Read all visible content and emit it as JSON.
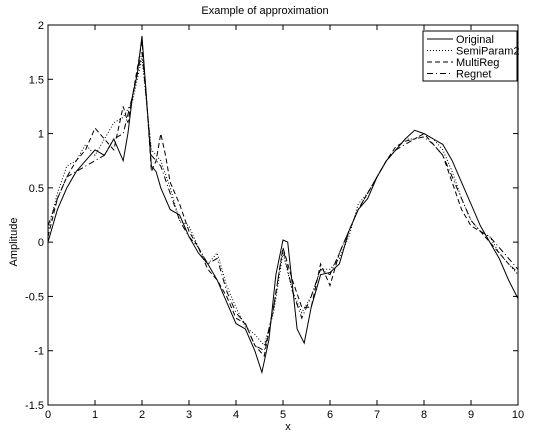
{
  "chart_data": {
    "type": "line",
    "title": "Example of approximation",
    "xlabel": "x",
    "ylabel": "Amplitude",
    "xlim": [
      0,
      10
    ],
    "ylim": [
      -1.5,
      2
    ],
    "xticks": [
      0,
      1,
      2,
      3,
      4,
      5,
      6,
      7,
      8,
      9,
      10
    ],
    "yticks": [
      -1.5,
      -1,
      -0.5,
      0,
      0.5,
      1,
      1.5,
      2
    ],
    "ytick_labels": [
      "-1.5",
      "-1",
      "-0.5",
      "0",
      "0.5",
      "1",
      "1.5",
      "2"
    ],
    "grid": false,
    "legend_position": "top-right",
    "series": [
      {
        "name": "Original",
        "style": "solid",
        "x": [
          0,
          0.2,
          0.4,
          0.6,
          0.8,
          1.0,
          1.2,
          1.4,
          1.5,
          1.6,
          1.7,
          1.8,
          1.9,
          2.0,
          2.1,
          2.2,
          2.3,
          2.4,
          2.6,
          2.8,
          3.0,
          3.2,
          3.4,
          3.6,
          3.8,
          4.0,
          4.2,
          4.4,
          4.55,
          4.7,
          4.85,
          5.0,
          5.1,
          5.2,
          5.3,
          5.45,
          5.6,
          5.8,
          6.0,
          6.2,
          6.4,
          6.6,
          6.8,
          7.0,
          7.2,
          7.4,
          7.6,
          7.8,
          8.0,
          8.2,
          8.4,
          8.6,
          8.8,
          9.0,
          9.2,
          9.4,
          9.6,
          9.8,
          10.0
        ],
        "y": [
          0.0,
          0.3,
          0.5,
          0.65,
          0.75,
          0.85,
          0.8,
          0.95,
          0.85,
          0.75,
          1.0,
          1.35,
          1.55,
          1.9,
          1.3,
          0.7,
          0.65,
          0.5,
          0.3,
          0.25,
          0.05,
          -0.1,
          -0.2,
          -0.35,
          -0.55,
          -0.75,
          -0.8,
          -1.0,
          -1.2,
          -0.9,
          -0.3,
          0.02,
          0.0,
          -0.4,
          -0.8,
          -0.93,
          -0.6,
          -0.3,
          -0.28,
          -0.2,
          0.1,
          0.3,
          0.4,
          0.6,
          0.75,
          0.85,
          0.95,
          1.03,
          1.0,
          0.95,
          0.9,
          0.75,
          0.55,
          0.35,
          0.15,
          0.0,
          -0.15,
          -0.35,
          -0.52
        ]
      },
      {
        "name": "SemiParam2",
        "style": "dotted",
        "x": [
          0,
          0.2,
          0.4,
          0.6,
          0.8,
          1.0,
          1.2,
          1.4,
          1.6,
          1.8,
          2.0,
          2.2,
          2.4,
          2.6,
          2.8,
          3.0,
          3.2,
          3.4,
          3.6,
          3.8,
          4.0,
          4.2,
          4.4,
          4.6,
          4.8,
          5.0,
          5.2,
          5.4,
          5.6,
          5.8,
          6.0,
          6.2,
          6.4,
          6.6,
          6.8,
          7.0,
          7.2,
          7.4,
          7.6,
          7.8,
          8.0,
          8.2,
          8.4,
          8.6,
          8.8,
          9.0,
          9.2,
          9.4,
          9.6,
          9.8,
          10.0
        ],
        "y": [
          0.1,
          0.45,
          0.7,
          0.75,
          0.9,
          0.8,
          0.95,
          1.1,
          1.15,
          1.3,
          1.7,
          0.85,
          0.75,
          0.5,
          0.2,
          0.15,
          -0.05,
          -0.2,
          -0.1,
          -0.4,
          -0.6,
          -0.78,
          -0.85,
          -0.95,
          -0.65,
          -0.1,
          -0.45,
          -0.65,
          -0.5,
          -0.25,
          -0.25,
          -0.15,
          0.05,
          0.35,
          0.45,
          0.6,
          0.75,
          0.85,
          0.95,
          0.95,
          1.0,
          0.95,
          0.85,
          0.65,
          0.4,
          0.2,
          0.1,
          0.05,
          -0.1,
          -0.2,
          -0.3
        ]
      },
      {
        "name": "MultiReg",
        "style": "dashed",
        "x": [
          0,
          0.2,
          0.4,
          0.6,
          0.8,
          1.0,
          1.2,
          1.4,
          1.6,
          1.7,
          1.8,
          1.9,
          2.0,
          2.1,
          2.2,
          2.3,
          2.4,
          2.5,
          2.6,
          2.8,
          3.0,
          3.2,
          3.4,
          3.6,
          3.8,
          4.0,
          4.2,
          4.4,
          4.6,
          4.8,
          5.0,
          5.2,
          5.4,
          5.6,
          5.8,
          6.0,
          6.2,
          6.4,
          6.6,
          6.8,
          7.0,
          7.2,
          7.4,
          7.6,
          7.8,
          8.0,
          8.2,
          8.4,
          8.6,
          8.8,
          9.0,
          9.2,
          9.4,
          9.6,
          9.8,
          10.0
        ],
        "y": [
          0.05,
          0.4,
          0.6,
          0.75,
          0.85,
          1.05,
          0.95,
          0.85,
          1.25,
          1.1,
          1.35,
          1.6,
          1.85,
          1.3,
          0.65,
          0.75,
          1.0,
          0.8,
          0.55,
          0.35,
          0.1,
          -0.05,
          -0.25,
          -0.35,
          -0.5,
          -0.7,
          -0.75,
          -0.95,
          -1.05,
          -0.6,
          -0.05,
          -0.35,
          -0.6,
          -0.6,
          -0.2,
          -0.4,
          -0.1,
          0.1,
          0.3,
          0.45,
          0.6,
          0.75,
          0.88,
          0.93,
          0.95,
          1.0,
          0.9,
          0.8,
          0.55,
          0.3,
          0.15,
          0.1,
          0.0,
          -0.1,
          -0.2,
          -0.28
        ]
      },
      {
        "name": "Regnet",
        "style": "dashdot",
        "x": [
          0,
          0.2,
          0.4,
          0.6,
          0.8,
          1.0,
          1.2,
          1.4,
          1.6,
          1.8,
          2.0,
          2.2,
          2.4,
          2.6,
          2.8,
          3.0,
          3.2,
          3.4,
          3.6,
          3.8,
          4.0,
          4.2,
          4.4,
          4.6,
          4.8,
          5.0,
          5.2,
          5.4,
          5.6,
          5.8,
          6.0,
          6.2,
          6.4,
          6.6,
          6.8,
          7.0,
          7.2,
          7.4,
          7.6,
          7.8,
          8.0,
          8.2,
          8.4,
          8.6,
          8.8,
          9.0,
          9.2,
          9.4,
          9.6,
          9.8,
          10.0
        ],
        "y": [
          0.15,
          0.4,
          0.6,
          0.65,
          0.7,
          0.75,
          0.8,
          0.95,
          1.0,
          1.35,
          1.75,
          0.8,
          0.7,
          0.45,
          0.2,
          0.05,
          -0.05,
          -0.2,
          -0.15,
          -0.45,
          -0.65,
          -0.75,
          -0.95,
          -1.0,
          -0.6,
          -0.05,
          -0.45,
          -0.7,
          -0.5,
          -0.25,
          -0.3,
          -0.1,
          0.1,
          0.3,
          0.45,
          0.6,
          0.75,
          0.85,
          0.9,
          0.95,
          0.97,
          0.9,
          0.8,
          0.6,
          0.4,
          0.2,
          0.1,
          0.05,
          -0.05,
          -0.15,
          -0.25
        ]
      }
    ]
  }
}
